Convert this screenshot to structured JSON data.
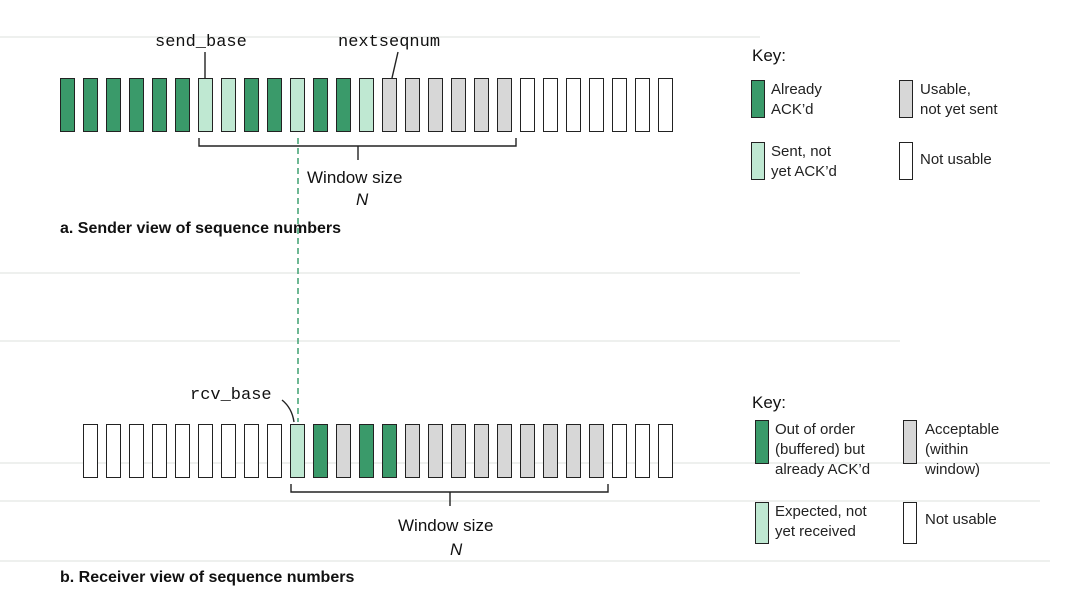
{
  "sender": {
    "caption": "a. Sender view of sequence numbers",
    "pointer_labels": {
      "base": "send_base",
      "next": "nextseqnum"
    },
    "window_label": "Window size",
    "window_symbol": "N",
    "cells": [
      "acked",
      "acked",
      "acked",
      "acked",
      "acked",
      "acked",
      "sent",
      "sent",
      "acked",
      "acked",
      "sent",
      "acked",
      "acked",
      "sent",
      "usable",
      "usable",
      "usable",
      "usable",
      "usable",
      "usable",
      "notusable",
      "notusable",
      "notusable",
      "notusable",
      "notusable",
      "notusable",
      "notusable"
    ],
    "key": {
      "title": "Key:",
      "items": [
        {
          "type": "acked",
          "lines": [
            "Already",
            "ACK’d"
          ]
        },
        {
          "type": "usable",
          "lines": [
            "Usable,",
            "not yet sent"
          ]
        },
        {
          "type": "sent",
          "lines": [
            "Sent, not",
            "yet ACK’d"
          ]
        },
        {
          "type": "notusable",
          "lines": [
            "Not usable"
          ]
        }
      ]
    }
  },
  "receiver": {
    "caption": "b. Receiver view of sequence numbers",
    "pointer_labels": {
      "base": "rcv_base"
    },
    "window_label": "Window size",
    "window_symbol": "N",
    "cells": [
      "notusable",
      "notusable",
      "notusable",
      "notusable",
      "notusable",
      "notusable",
      "notusable",
      "notusable",
      "notusable",
      "expected",
      "outoforder",
      "usable",
      "outoforder",
      "outoforder",
      "usable",
      "usable",
      "usable",
      "usable",
      "usable",
      "usable",
      "usable",
      "usable",
      "usable",
      "notusable",
      "notusable",
      "notusable"
    ],
    "key": {
      "title": "Key:",
      "items": [
        {
          "type": "outoforder",
          "lines": [
            "Out of order",
            "(buffered) but",
            "already ACK’d"
          ]
        },
        {
          "type": "usable",
          "lines": [
            "Acceptable",
            "(within",
            "window)"
          ]
        },
        {
          "type": "expected",
          "lines": [
            "Expected, not",
            "yet received"
          ]
        },
        {
          "type": "notusable",
          "lines": [
            "Not usable"
          ]
        }
      ]
    }
  },
  "colors": {
    "acked": "#3a9a6a",
    "sent_not_acked": "#bfe8d2",
    "usable": "#d7d7d7",
    "not_usable": "#ffffff",
    "outline": "#222222",
    "dashed_line": "#4aa67a"
  }
}
